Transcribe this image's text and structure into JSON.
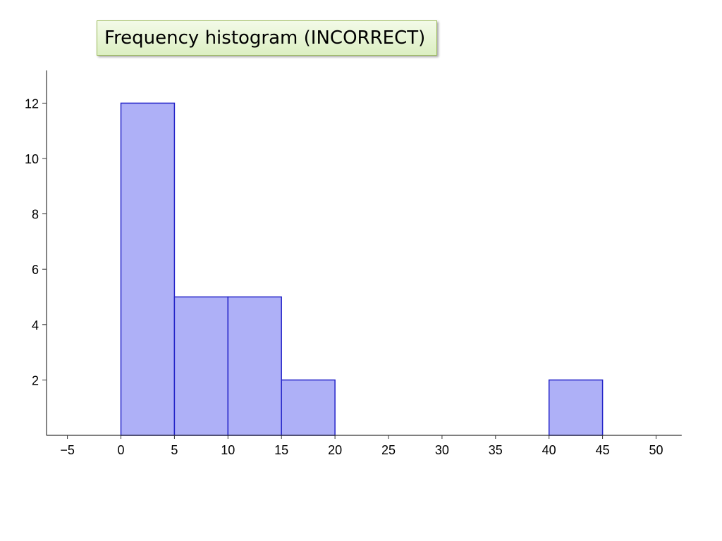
{
  "title_box": {
    "text": "Frequency histogram (INCORRECT)"
  },
  "colors": {
    "bar_fill": "#aeb0f7",
    "bar_stroke": "#2424c8",
    "axis": "#333333"
  },
  "chart_data": {
    "type": "bar",
    "bins": [
      {
        "start": 0,
        "end": 5,
        "value": 12
      },
      {
        "start": 5,
        "end": 10,
        "value": 5
      },
      {
        "start": 10,
        "end": 15,
        "value": 5
      },
      {
        "start": 15,
        "end": 20,
        "value": 2
      },
      {
        "start": 20,
        "end": 25,
        "value": 0
      },
      {
        "start": 25,
        "end": 30,
        "value": 0
      },
      {
        "start": 30,
        "end": 35,
        "value": 0
      },
      {
        "start": 35,
        "end": 40,
        "value": 0
      },
      {
        "start": 40,
        "end": 45,
        "value": 2
      }
    ],
    "x_ticks": [
      "−5",
      "0",
      "5",
      "10",
      "15",
      "20",
      "25",
      "30",
      "35",
      "40",
      "45",
      "50"
    ],
    "x_tick_values": [
      -5,
      0,
      5,
      10,
      15,
      20,
      25,
      30,
      35,
      40,
      45,
      50
    ],
    "y_ticks": [
      "2",
      "4",
      "6",
      "8",
      "10",
      "12"
    ],
    "y_tick_values": [
      2,
      4,
      6,
      8,
      10,
      12
    ],
    "xlim": [
      -6.5,
      52
    ],
    "ylim": [
      0,
      13.2
    ],
    "xlabel": "",
    "ylabel": "",
    "grid": false
  }
}
